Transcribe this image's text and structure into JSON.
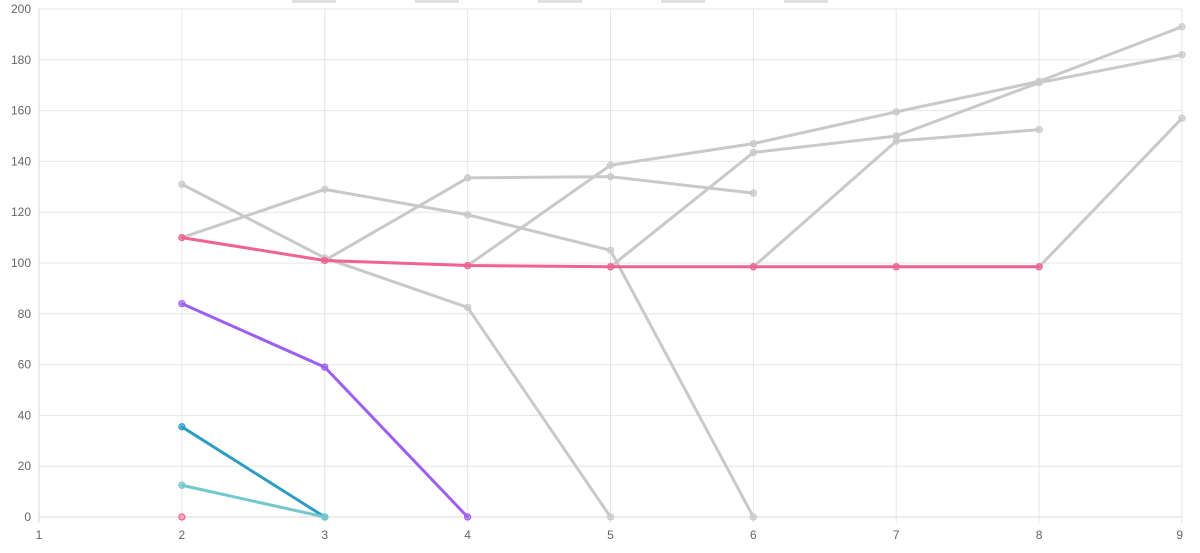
{
  "chart_data": {
    "type": "line",
    "title": "",
    "xlabel": "",
    "ylabel": "",
    "xlim": [
      1,
      9
    ],
    "ylim": [
      0,
      200
    ],
    "x_ticks": [
      "1",
      "2",
      "3",
      "4",
      "5",
      "6",
      "7",
      "8",
      "9"
    ],
    "y_ticks": [
      "0",
      "20",
      "40",
      "60",
      "80",
      "100",
      "120",
      "140",
      "160",
      "180",
      "200"
    ],
    "grid": true,
    "legend": {
      "placement": "top",
      "entries": 5
    },
    "series": [
      {
        "color": "#c9c9c9",
        "x": [
          2,
          3,
          4,
          5,
          6
        ],
        "y": [
          131,
          102,
          82.5,
          0,
          null
        ]
      },
      {
        "color": "#c9c9c9",
        "x": [
          2,
          3,
          4,
          5,
          6
        ],
        "y": [
          110,
          129,
          119,
          105,
          0
        ]
      },
      {
        "color": "#c9c9c9",
        "x": [
          3,
          4,
          5,
          6
        ],
        "y": [
          101,
          133.5,
          134,
          127.5
        ]
      },
      {
        "color": "#c9c9c9",
        "x": [
          4,
          5,
          6,
          7,
          8,
          9
        ],
        "y": [
          99,
          138.5,
          147,
          159.5,
          171.5,
          193
        ]
      },
      {
        "color": "#c9c9c9",
        "x": [
          5,
          6,
          7,
          8,
          9
        ],
        "y": [
          98.5,
          143.5,
          150,
          171,
          182
        ]
      },
      {
        "color": "#c9c9c9",
        "x": [
          6,
          7,
          8
        ],
        "y": [
          98.5,
          148,
          152.5
        ]
      },
      {
        "color": "#c9c9c9",
        "x": [
          7,
          8,
          9
        ],
        "y": [
          98.5,
          98.5,
          157
        ]
      },
      {
        "color": "#f06292",
        "x": [
          2,
          3,
          4,
          5,
          6,
          7,
          8
        ],
        "y": [
          110,
          101,
          99,
          98.5,
          98.5,
          98.5,
          98.5
        ]
      },
      {
        "color": "#9c5ff0",
        "x": [
          2,
          3,
          4
        ],
        "y": [
          84,
          59,
          0
        ]
      },
      {
        "color": "#2f9cc4",
        "x": [
          2,
          3
        ],
        "y": [
          35.5,
          0
        ]
      },
      {
        "color": "#72c8cc",
        "x": [
          2,
          3
        ],
        "y": [
          12.5,
          0
        ]
      },
      {
        "color": "#f06292",
        "x": [
          2
        ],
        "y": [
          0
        ]
      }
    ]
  }
}
